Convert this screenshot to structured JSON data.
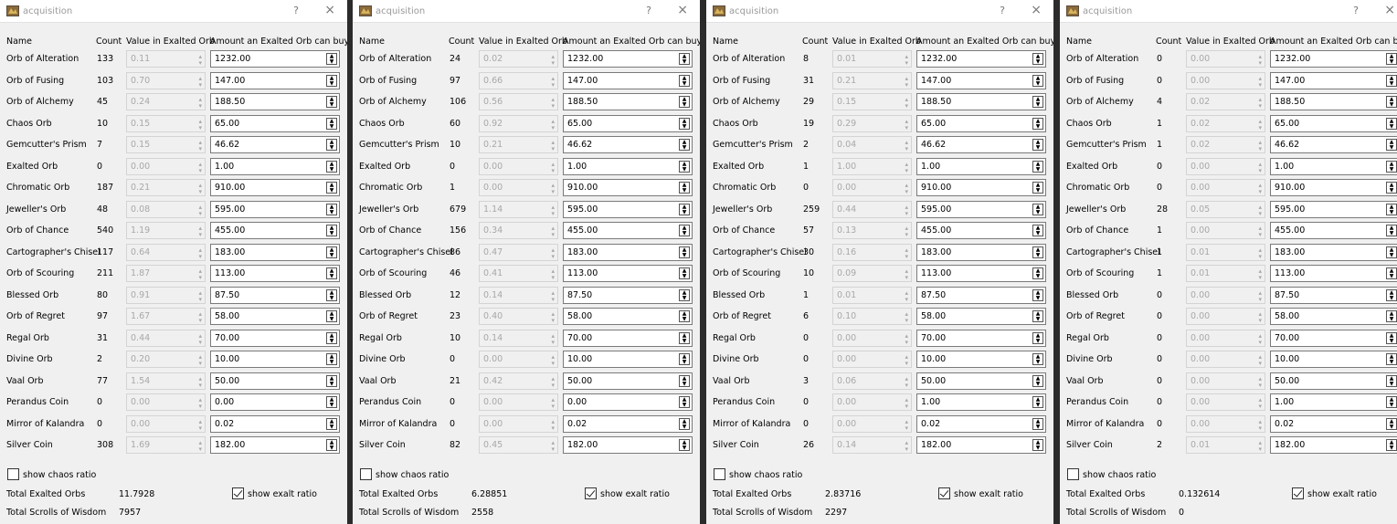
{
  "window_title": "acquisition",
  "help_glyph": "?",
  "close_glyph": "×",
  "headers": {
    "name": "Name",
    "count": "Count",
    "value": "Value in Exalted Orb",
    "amount": "Amount an Exalted Orb can buy"
  },
  "show_chaos_label": "show chaos ratio",
  "show_exalt_label": "show exalt ratio",
  "total_exalted_label": "Total Exalted Orbs",
  "total_wisdom_label": "Total Scrolls of Wisdom",
  "items": [
    "Orb of Alteration",
    "Orb of Fusing",
    "Orb of Alchemy",
    "Chaos Orb",
    "Gemcutter's Prism",
    "Exalted Orb",
    "Chromatic Orb",
    "Jeweller's Orb",
    "Orb of Chance",
    "Cartographer's Chisel",
    "Orb of Scouring",
    "Blessed Orb",
    "Orb of Regret",
    "Regal Orb",
    "Divine Orb",
    "Vaal Orb",
    "Perandus Coin",
    "Mirror of Kalandra",
    "Silver Coin"
  ],
  "panels": [
    {
      "counts": [
        "133",
        "103",
        "45",
        "10",
        "7",
        "0",
        "187",
        "48",
        "540",
        "117",
        "211",
        "80",
        "97",
        "31",
        "2",
        "77",
        "0",
        "0",
        "308"
      ],
      "values": [
        "0.11",
        "0.70",
        "0.24",
        "0.15",
        "0.15",
        "0.00",
        "0.21",
        "0.08",
        "1.19",
        "0.64",
        "1.87",
        "0.91",
        "1.67",
        "0.44",
        "0.20",
        "1.54",
        "0.00",
        "0.00",
        "1.69"
      ],
      "amounts": [
        "1232.00",
        "147.00",
        "188.50",
        "65.00",
        "46.62",
        "1.00",
        "910.00",
        "595.00",
        "455.00",
        "183.00",
        "113.00",
        "87.50",
        "58.00",
        "70.00",
        "10.00",
        "50.00",
        "0.00",
        "0.02",
        "182.00"
      ],
      "total_exalted": "11.7928",
      "total_wisdom": "7957"
    },
    {
      "counts": [
        "24",
        "97",
        "106",
        "60",
        "10",
        "0",
        "1",
        "679",
        "156",
        "86",
        "46",
        "12",
        "23",
        "10",
        "0",
        "21",
        "0",
        "0",
        "82"
      ],
      "values": [
        "0.02",
        "0.66",
        "0.56",
        "0.92",
        "0.21",
        "0.00",
        "0.00",
        "1.14",
        "0.34",
        "0.47",
        "0.41",
        "0.14",
        "0.40",
        "0.14",
        "0.00",
        "0.42",
        "0.00",
        "0.00",
        "0.45"
      ],
      "amounts": [
        "1232.00",
        "147.00",
        "188.50",
        "65.00",
        "46.62",
        "1.00",
        "910.00",
        "595.00",
        "455.00",
        "183.00",
        "113.00",
        "87.50",
        "58.00",
        "70.00",
        "10.00",
        "50.00",
        "0.00",
        "0.02",
        "182.00"
      ],
      "total_exalted": "6.28851",
      "total_wisdom": "2558"
    },
    {
      "counts": [
        "8",
        "31",
        "29",
        "19",
        "2",
        "1",
        "0",
        "259",
        "57",
        "30",
        "10",
        "1",
        "6",
        "0",
        "0",
        "3",
        "0",
        "0",
        "26"
      ],
      "values": [
        "0.01",
        "0.21",
        "0.15",
        "0.29",
        "0.04",
        "1.00",
        "0.00",
        "0.44",
        "0.13",
        "0.16",
        "0.09",
        "0.01",
        "0.10",
        "0.00",
        "0.00",
        "0.06",
        "0.00",
        "0.00",
        "0.14"
      ],
      "amounts": [
        "1232.00",
        "147.00",
        "188.50",
        "65.00",
        "46.62",
        "1.00",
        "910.00",
        "595.00",
        "455.00",
        "183.00",
        "113.00",
        "87.50",
        "58.00",
        "70.00",
        "10.00",
        "50.00",
        "1.00",
        "0.02",
        "182.00"
      ],
      "total_exalted": "2.83716",
      "total_wisdom": "2297"
    },
    {
      "counts": [
        "0",
        "0",
        "4",
        "1",
        "1",
        "0",
        "0",
        "28",
        "1",
        "1",
        "1",
        "0",
        "0",
        "0",
        "0",
        "0",
        "0",
        "0",
        "2"
      ],
      "values": [
        "0.00",
        "0.00",
        "0.02",
        "0.02",
        "0.02",
        "0.00",
        "0.00",
        "0.05",
        "0.00",
        "0.01",
        "0.01",
        "0.00",
        "0.00",
        "0.00",
        "0.00",
        "0.00",
        "0.00",
        "0.00",
        "0.01"
      ],
      "amounts": [
        "1232.00",
        "147.00",
        "188.50",
        "65.00",
        "46.62",
        "1.00",
        "910.00",
        "595.00",
        "455.00",
        "183.00",
        "113.00",
        "87.50",
        "58.00",
        "70.00",
        "10.00",
        "50.00",
        "1.00",
        "0.02",
        "182.00"
      ],
      "total_exalted": "0.132614",
      "total_wisdom": "0"
    }
  ]
}
